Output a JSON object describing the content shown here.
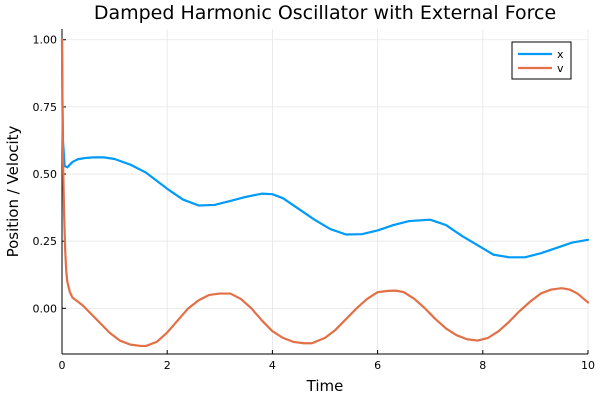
{
  "chart_data": {
    "type": "line",
    "title": "Damped Harmonic Oscillator with External Force",
    "xlabel": "Time",
    "ylabel": "Position / Velocity",
    "xlim": [
      0,
      10
    ],
    "ylim": [
      -0.17,
      1.04
    ],
    "xticks": [
      0,
      2,
      4,
      6,
      8,
      10
    ],
    "xtick_labels": [
      "0",
      "2",
      "4",
      "6",
      "8",
      "10"
    ],
    "yticks": [
      0.0,
      0.25,
      0.5,
      0.75,
      1.0
    ],
    "ytick_labels": [
      "0.00",
      "0.25",
      "0.50",
      "0.75",
      "1.00"
    ],
    "grid": true,
    "legend_position": "top-right",
    "series": [
      {
        "name": "x",
        "color": "#009af9",
        "x": [
          0,
          0.01,
          0.02,
          0.05,
          0.1,
          0.2,
          0.3,
          0.45,
          0.6,
          0.8,
          1.0,
          1.3,
          1.6,
          2.0,
          2.3,
          2.6,
          2.9,
          3.2,
          3.5,
          3.8,
          4.0,
          4.2,
          4.5,
          4.8,
          5.1,
          5.4,
          5.7,
          6.0,
          6.3,
          6.6,
          7.0,
          7.3,
          7.6,
          7.9,
          8.2,
          8.5,
          8.8,
          9.1,
          9.4,
          9.7,
          10.0
        ],
        "y": [
          1.0,
          0.75,
          0.62,
          0.53,
          0.525,
          0.545,
          0.555,
          0.56,
          0.562,
          0.562,
          0.556,
          0.535,
          0.505,
          0.445,
          0.405,
          0.383,
          0.385,
          0.4,
          0.415,
          0.427,
          0.425,
          0.41,
          0.37,
          0.33,
          0.295,
          0.275,
          0.276,
          0.29,
          0.31,
          0.325,
          0.33,
          0.31,
          0.27,
          0.235,
          0.2,
          0.19,
          0.19,
          0.205,
          0.225,
          0.245,
          0.255
        ]
      },
      {
        "name": "v",
        "color": "#e26f46",
        "x": [
          0,
          0.01,
          0.02,
          0.04,
          0.06,
          0.08,
          0.1,
          0.15,
          0.2,
          0.3,
          0.4,
          0.55,
          0.7,
          0.9,
          1.1,
          1.3,
          1.5,
          1.6,
          1.8,
          2.0,
          2.2,
          2.4,
          2.6,
          2.8,
          3.0,
          3.2,
          3.4,
          3.6,
          3.8,
          4.0,
          4.2,
          4.4,
          4.6,
          4.75,
          5.0,
          5.2,
          5.4,
          5.6,
          5.8,
          6.0,
          6.2,
          6.35,
          6.5,
          6.7,
          6.9,
          7.1,
          7.3,
          7.5,
          7.7,
          7.9,
          8.1,
          8.3,
          8.5,
          8.7,
          8.9,
          9.1,
          9.3,
          9.5,
          9.65,
          9.8,
          10.0
        ],
        "y": [
          1.0,
          0.72,
          0.55,
          0.35,
          0.22,
          0.14,
          0.1,
          0.06,
          0.04,
          0.025,
          0.01,
          -0.02,
          -0.05,
          -0.09,
          -0.12,
          -0.135,
          -0.14,
          -0.14,
          -0.125,
          -0.09,
          -0.045,
          0.0,
          0.03,
          0.05,
          0.055,
          0.055,
          0.035,
          0.0,
          -0.045,
          -0.085,
          -0.11,
          -0.125,
          -0.13,
          -0.13,
          -0.11,
          -0.08,
          -0.04,
          0.0,
          0.035,
          0.06,
          0.065,
          0.066,
          0.06,
          0.035,
          0.0,
          -0.04,
          -0.075,
          -0.1,
          -0.115,
          -0.12,
          -0.11,
          -0.085,
          -0.05,
          -0.01,
          0.025,
          0.055,
          0.07,
          0.075,
          0.07,
          0.055,
          0.022
        ]
      }
    ]
  }
}
